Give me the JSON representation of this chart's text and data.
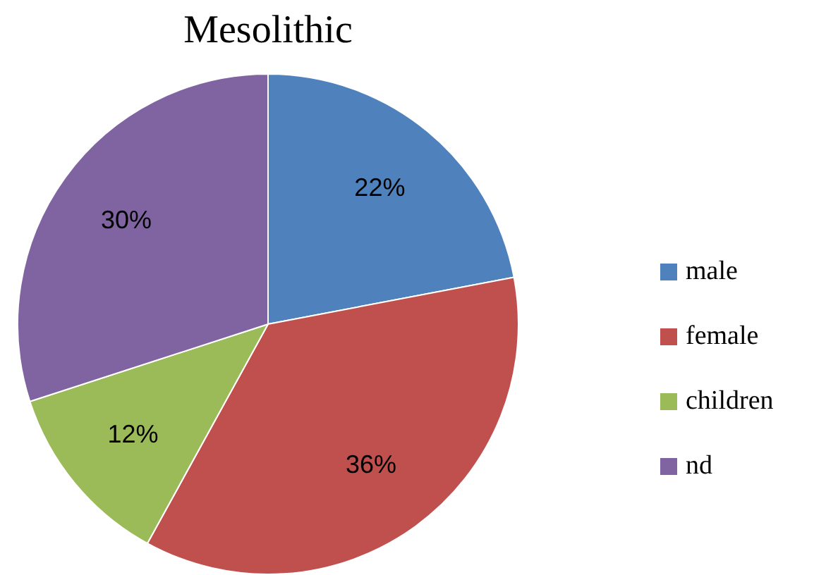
{
  "chart_data": {
    "type": "pie",
    "title": "Mesolithic",
    "categories": [
      "male",
      "female",
      "children",
      "nd"
    ],
    "values": [
      22,
      36,
      12,
      30
    ],
    "colors": [
      "#4f81bd",
      "#c0504d",
      "#9bbb59",
      "#8064a2"
    ],
    "value_labels": [
      "22%",
      "36%",
      "12%",
      "30%"
    ],
    "legend": "right"
  }
}
